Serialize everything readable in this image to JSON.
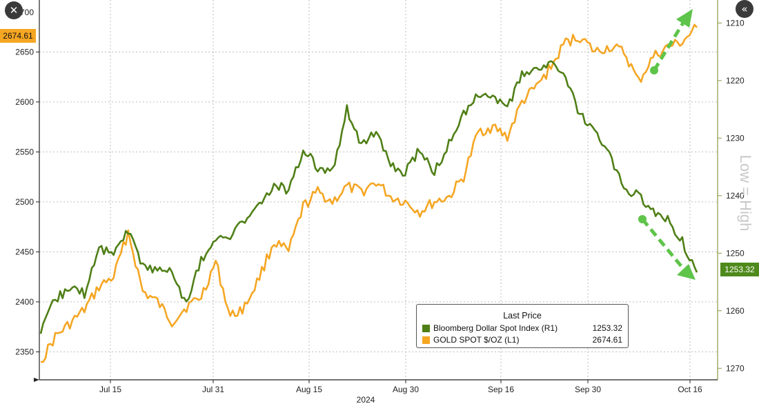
{
  "buttons": {
    "close_icon": "✕",
    "collapse_icon": "«"
  },
  "annotation": "Low = High",
  "year_label": "2024",
  "left_price_tag": "2674.61",
  "right_price_tag": "1253.32",
  "colors": {
    "gold": "#f5a623",
    "dollar": "#4f7f16",
    "arrow": "#5ec44a",
    "gold_tag": "#f5a623",
    "dollar_tag": "#4f8a1c"
  },
  "legend": {
    "title": "Last Price",
    "rows": [
      {
        "name": "Bloomberg Dollar Spot Index  (R1)",
        "value": "1253.32",
        "color": "#4f7f16"
      },
      {
        "name": "GOLD SPOT $/OZ  (L1)",
        "value": "2674.61",
        "color": "#f5a623"
      }
    ]
  },
  "chart_data": {
    "type": "line",
    "title": "",
    "xlabel": "2024",
    "x_tick_labels": [
      "Jul 15",
      "Jul 31",
      "Aug 15",
      "Aug 30",
      "Sep 16",
      "Sep 30",
      "Oct 16"
    ],
    "left_axis": {
      "ticks": [
        2350,
        2400,
        2450,
        2500,
        2550,
        2600,
        2650
      ],
      "top_partial_label": "2700",
      "range": [
        2322,
        2702
      ]
    },
    "right_axis": {
      "ticks": [
        1210,
        1220,
        1230,
        1240,
        1250,
        1260,
        1270
      ],
      "inverted": true,
      "range": [
        1206,
        1272
      ]
    },
    "grid": true,
    "legend_position": "bottom-right",
    "x": [
      "Jul 5",
      "Jul 8",
      "Jul 10",
      "Jul 12",
      "Jul 15",
      "Jul 17",
      "Jul 19",
      "Jul 22",
      "Jul 24",
      "Jul 26",
      "Jul 29",
      "Jul 31",
      "Aug 2",
      "Aug 5",
      "Aug 7",
      "Aug 9",
      "Aug 12",
      "Aug 14",
      "Aug 16",
      "Aug 19",
      "Aug 21",
      "Aug 23",
      "Aug 26",
      "Aug 28",
      "Aug 30",
      "Sep 2",
      "Sep 4",
      "Sep 6",
      "Sep 9",
      "Sep 11",
      "Sep 13",
      "Sep 16",
      "Sep 18",
      "Sep 20",
      "Sep 23",
      "Sep 25",
      "Sep 27",
      "Sep 30",
      "Oct 2",
      "Oct 4",
      "Oct 7",
      "Oct 9",
      "Oct 11",
      "Oct 14",
      "Oct 16",
      "Oct 17"
    ],
    "series": [
      {
        "name": "GOLD SPOT $/OZ (L1)",
        "axis": "left",
        "values": [
          2340,
          2365,
          2378,
          2392,
          2415,
          2425,
          2470,
          2410,
          2400,
          2380,
          2395,
          2405,
          2440,
          2385,
          2395,
          2425,
          2460,
          2450,
          2495,
          2510,
          2500,
          2515,
          2510,
          2520,
          2505,
          2500,
          2490,
          2500,
          2505,
          2525,
          2570,
          2575,
          2565,
          2600,
          2615,
          2635,
          2660,
          2665,
          2650,
          2655,
          2650,
          2620,
          2645,
          2655,
          2660,
          2674.61
        ]
      },
      {
        "name": "Bloomberg Dollar Spot Index (R1)",
        "axis": "right",
        "values": [
          1264,
          1258,
          1256,
          1257,
          1249,
          1250,
          1246,
          1252,
          1253,
          1253,
          1259,
          1251,
          1248,
          1247,
          1244,
          1242,
          1238,
          1239,
          1232,
          1235,
          1236,
          1225,
          1231,
          1229,
          1235,
          1236,
          1232,
          1236,
          1231,
          1226,
          1222,
          1223,
          1225,
          1219,
          1218,
          1217,
          1220,
          1226,
          1229,
          1233,
          1239,
          1240,
          1243,
          1244,
          1248,
          1253.32
        ]
      }
    ]
  }
}
